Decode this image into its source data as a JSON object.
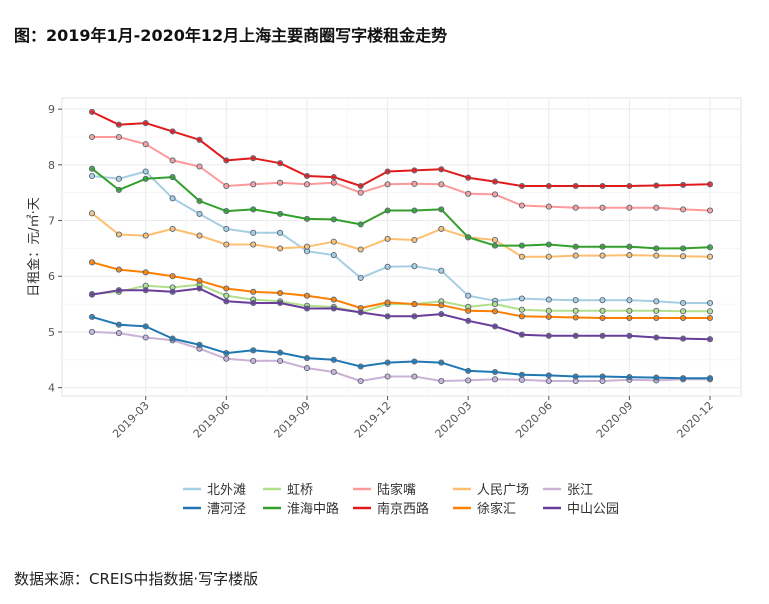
{
  "title": "图：2019年1月-2020年12月上海主要商圈写字楼租金走势",
  "source": "数据来源：CREIS中指数据·写字楼版",
  "chart_data": {
    "type": "line",
    "ylabel": "日租金：元/㎡·天",
    "xlabel": "",
    "ylim": [
      3.85,
      9.2
    ],
    "yticks": [
      4,
      5,
      6,
      7,
      8,
      9
    ],
    "x": [
      "2019-01",
      "2019-02",
      "2019-03",
      "2019-04",
      "2019-05",
      "2019-06",
      "2019-07",
      "2019-08",
      "2019-09",
      "2019-10",
      "2019-11",
      "2019-12",
      "2020-01",
      "2020-02",
      "2020-03",
      "2020-04",
      "2020-05",
      "2020-06",
      "2020-07",
      "2020-08",
      "2020-09",
      "2020-10",
      "2020-11",
      "2020-12"
    ],
    "xticks": [
      "2019-03",
      "2019-06",
      "2019-09",
      "2019-12",
      "2020-03",
      "2020-06",
      "2020-09",
      "2020-12"
    ],
    "series": [
      {
        "name": "北外滩",
        "color": "#a6cee3",
        "values": [
          7.8,
          7.75,
          7.88,
          7.4,
          7.12,
          6.85,
          6.78,
          6.78,
          6.45,
          6.38,
          5.97,
          6.17,
          6.18,
          6.1,
          5.65,
          5.56,
          5.6,
          5.58,
          5.57,
          5.57,
          5.57,
          5.55,
          5.52,
          5.52
        ]
      },
      {
        "name": "虹桥",
        "color": "#b2df8a",
        "values": [
          5.68,
          5.72,
          5.83,
          5.8,
          5.85,
          5.65,
          5.58,
          5.55,
          5.47,
          5.45,
          5.35,
          5.5,
          5.5,
          5.55,
          5.45,
          5.5,
          5.4,
          5.38,
          5.38,
          5.38,
          5.38,
          5.38,
          5.37,
          5.37
        ]
      },
      {
        "name": "陆家嘴",
        "color": "#fb9a99",
        "values": [
          8.5,
          8.5,
          8.37,
          8.08,
          7.97,
          7.62,
          7.65,
          7.68,
          7.65,
          7.68,
          7.5,
          7.65,
          7.66,
          7.65,
          7.48,
          7.47,
          7.27,
          7.25,
          7.23,
          7.23,
          7.23,
          7.23,
          7.2,
          7.18
        ]
      },
      {
        "name": "人民广场",
        "color": "#fdbf6f",
        "values": [
          7.13,
          6.75,
          6.73,
          6.85,
          6.73,
          6.57,
          6.57,
          6.5,
          6.53,
          6.62,
          6.48,
          6.67,
          6.65,
          6.85,
          6.7,
          6.65,
          6.35,
          6.35,
          6.37,
          6.37,
          6.38,
          6.37,
          6.36,
          6.35
        ]
      },
      {
        "name": "张江",
        "color": "#cab2d6",
        "values": [
          5.0,
          4.98,
          4.9,
          4.85,
          4.7,
          4.52,
          4.48,
          4.48,
          4.35,
          4.28,
          4.12,
          4.2,
          4.2,
          4.12,
          4.13,
          4.15,
          4.14,
          4.12,
          4.12,
          4.12,
          4.14,
          4.13,
          4.15,
          4.15
        ]
      },
      {
        "name": "漕河泾",
        "color": "#1f78b4",
        "values": [
          5.27,
          5.13,
          5.1,
          4.88,
          4.77,
          4.62,
          4.67,
          4.63,
          4.53,
          4.5,
          4.38,
          4.45,
          4.47,
          4.45,
          4.3,
          4.28,
          4.23,
          4.22,
          4.2,
          4.2,
          4.19,
          4.18,
          4.17,
          4.17
        ]
      },
      {
        "name": "淮海中路",
        "color": "#33a02c",
        "values": [
          7.93,
          7.55,
          7.75,
          7.78,
          7.35,
          7.17,
          7.2,
          7.12,
          7.03,
          7.02,
          6.93,
          7.18,
          7.18,
          7.2,
          6.7,
          6.55,
          6.55,
          6.57,
          6.53,
          6.53,
          6.53,
          6.5,
          6.5,
          6.52
        ]
      },
      {
        "name": "南京西路",
        "color": "#e31a1c",
        "values": [
          8.95,
          8.72,
          8.75,
          8.6,
          8.45,
          8.08,
          8.12,
          8.03,
          7.8,
          7.78,
          7.62,
          7.88,
          7.9,
          7.92,
          7.77,
          7.7,
          7.62,
          7.62,
          7.62,
          7.62,
          7.62,
          7.63,
          7.64,
          7.65
        ]
      },
      {
        "name": "徐家汇",
        "color": "#ff7f00",
        "values": [
          6.25,
          6.12,
          6.07,
          6.0,
          5.92,
          5.78,
          5.72,
          5.7,
          5.65,
          5.58,
          5.43,
          5.53,
          5.5,
          5.48,
          5.38,
          5.37,
          5.28,
          5.27,
          5.26,
          5.25,
          5.25,
          5.25,
          5.25,
          5.25
        ]
      },
      {
        "name": "中山公园",
        "color": "#6a3d9a",
        "values": [
          5.67,
          5.75,
          5.75,
          5.72,
          5.78,
          5.55,
          5.52,
          5.52,
          5.42,
          5.42,
          5.35,
          5.28,
          5.28,
          5.32,
          5.2,
          5.1,
          4.95,
          4.93,
          4.93,
          4.93,
          4.93,
          4.9,
          4.88,
          4.87
        ]
      }
    ],
    "legend_position": "bottom",
    "grid": true
  }
}
